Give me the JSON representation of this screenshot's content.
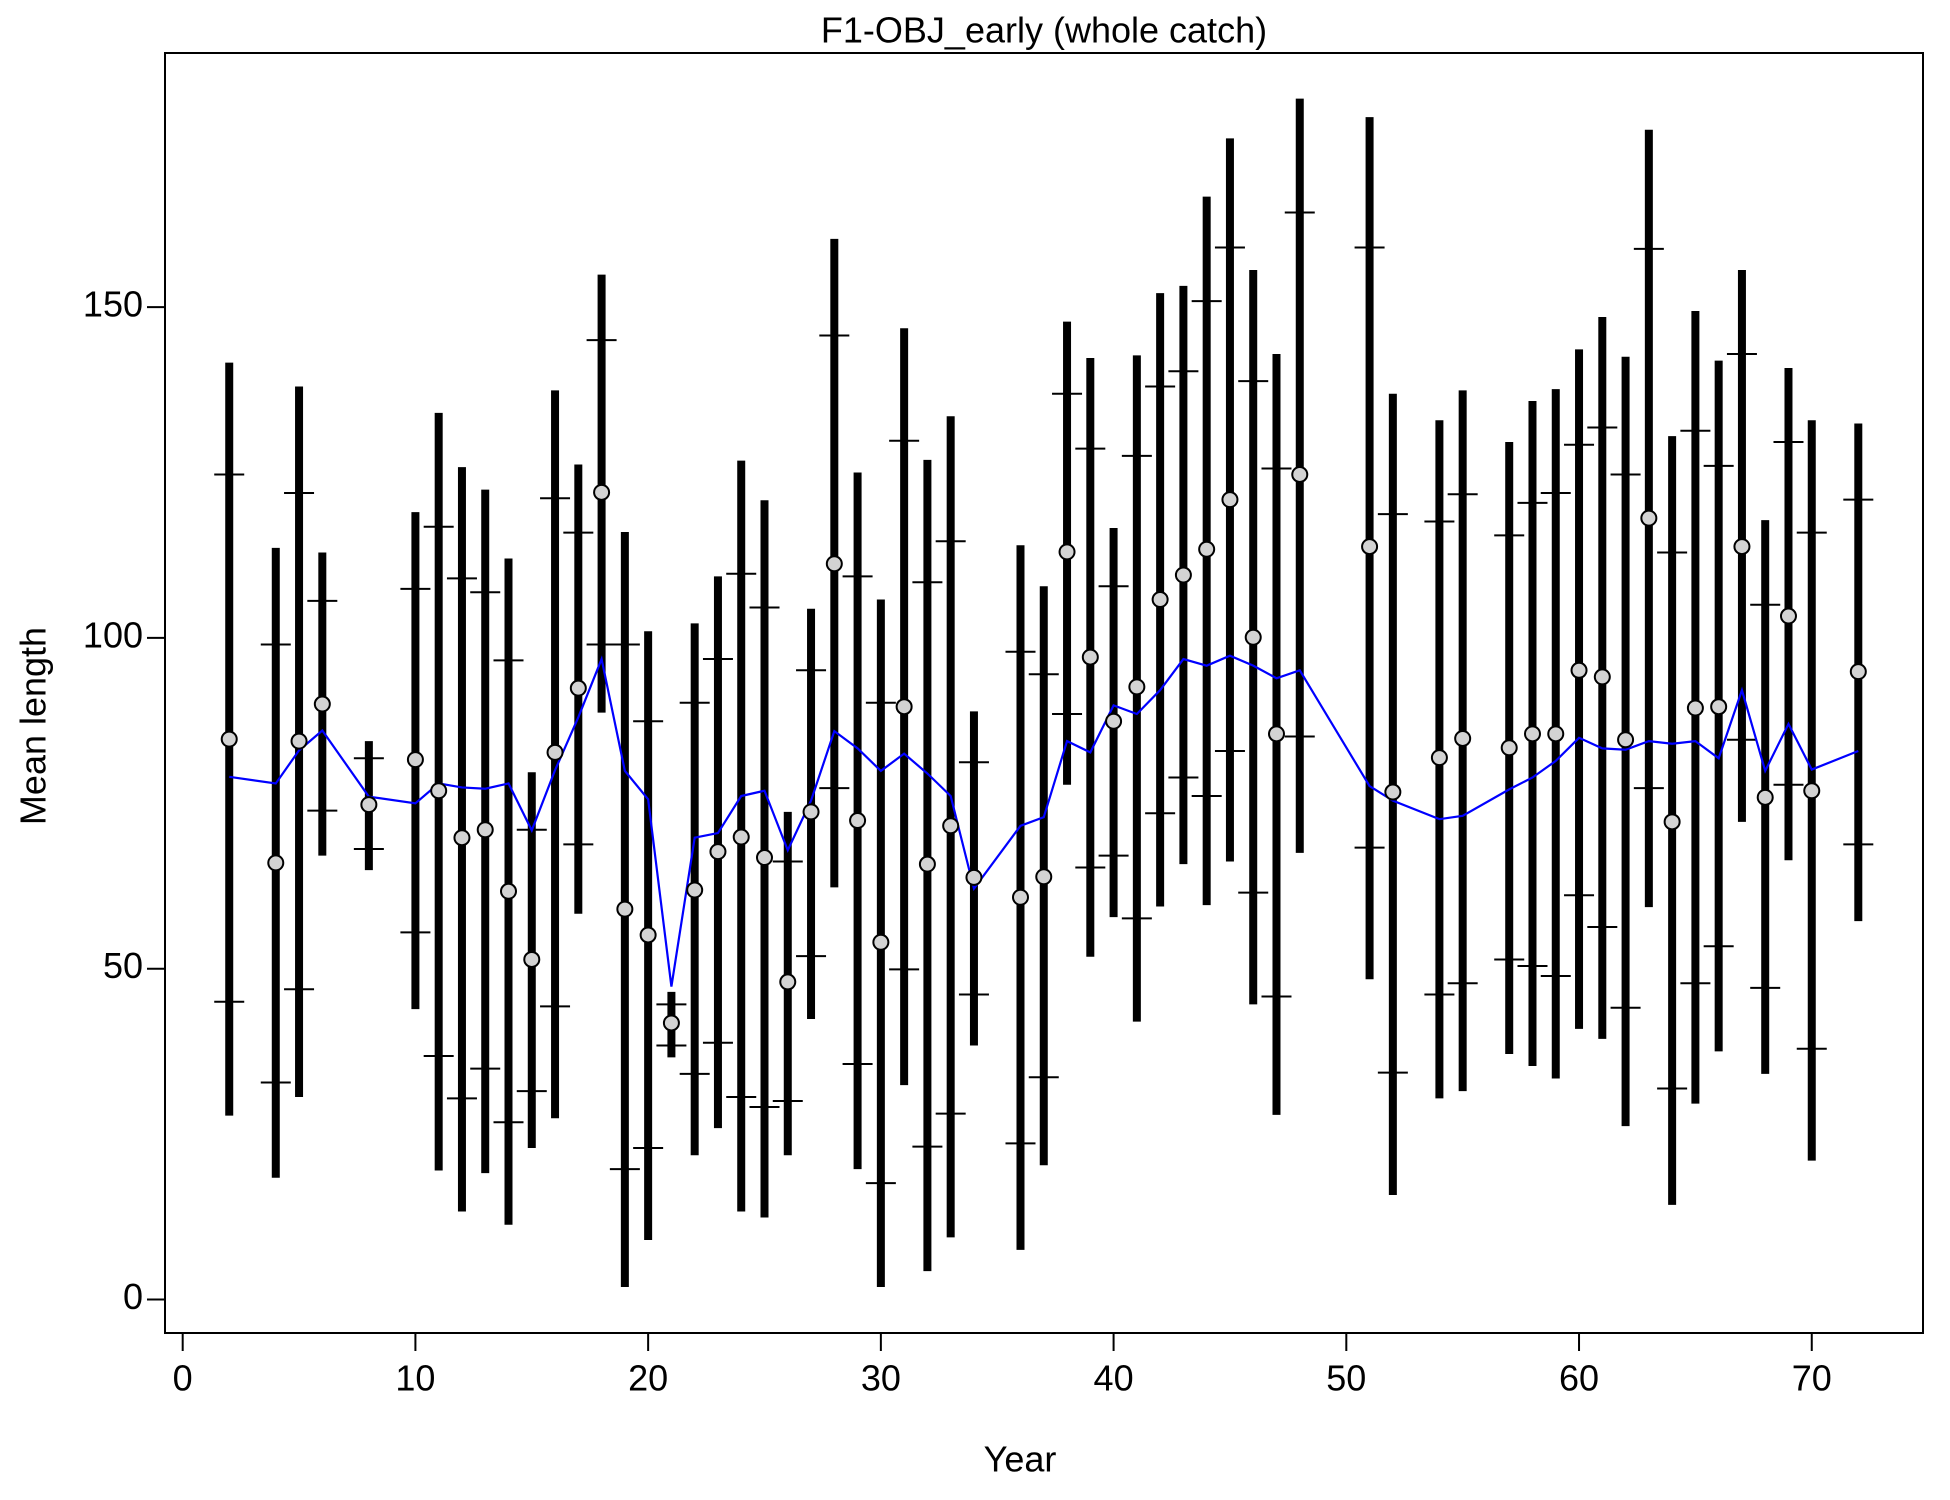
{
  "chart_data": {
    "type": "errorbar",
    "title": "F1-OBJ_early (whole catch)",
    "x_label": "Year",
    "y_label": "Mean length",
    "xlim": [
      -0.76,
      74.78
    ],
    "ylim": [
      -5.06,
      188.4
    ],
    "xticks": [
      0,
      10,
      20,
      30,
      40,
      50,
      60,
      70
    ],
    "yticks": [
      0,
      50,
      100,
      150
    ],
    "point_color": "#d3d3d3",
    "bar_color": "#000000",
    "line_color": "#0000ff",
    "x": [
      2,
      4,
      5,
      6,
      8,
      10,
      11,
      12,
      13,
      14,
      15,
      16,
      17,
      18,
      19,
      20,
      21,
      22,
      23,
      24,
      25,
      26,
      27,
      28,
      29,
      30,
      31,
      32,
      33,
      34,
      36,
      37,
      38,
      39,
      40,
      41,
      42,
      43,
      44,
      45,
      46,
      47,
      48,
      51,
      52,
      54,
      55,
      57,
      58,
      59,
      60,
      61,
      62,
      63,
      64,
      65,
      66,
      67,
      68,
      69,
      70,
      72
    ],
    "observed": [
      84.7,
      66,
      84.4,
      90,
      74.8,
      81.6,
      76.9,
      69.8,
      71,
      61.7,
      51.4,
      82.7,
      92.4,
      122,
      59,
      55.1,
      41.8,
      61.9,
      67.7,
      69.9,
      66.8,
      48,
      73.7,
      111.2,
      72.4,
      54,
      89.6,
      65.8,
      71.6,
      63.8,
      60.8,
      63.9,
      113,
      97.1,
      87.4,
      92.6,
      105.8,
      109.5,
      113.4,
      120.9,
      100.1,
      85.5,
      124.7,
      113.8,
      76.7,
      81.9,
      84.8,
      83.4,
      85.5,
      85.5,
      95.1,
      94.1,
      84.6,
      118.1,
      72.2,
      89.4,
      89.6,
      113.8,
      75.9,
      103.3,
      76.9,
      94.9
    ],
    "expected": [
      79,
      78,
      83,
      86,
      76,
      75,
      78,
      77.4,
      77.2,
      78,
      70.9,
      80,
      88,
      96.8,
      79.9,
      75.6,
      47.3,
      69.8,
      70.5,
      76.1,
      76.9,
      67.9,
      75.4,
      85.9,
      83.3,
      79.9,
      82.5,
      79.5,
      76.1,
      62.1,
      71.6,
      72.9,
      84.4,
      82.7,
      89.8,
      88.5,
      92.1,
      96.8,
      95.8,
      97.3,
      95.8,
      93.9,
      95.1,
      77.6,
      75.4,
      72.6,
      73.1,
      77.1,
      78.9,
      81.4,
      84.9,
      83.3,
      83.1,
      84.4,
      84,
      84.4,
      81.8,
      92.1,
      79.9,
      87,
      80.1,
      82.9
    ],
    "outer_lower": [
      27.8,
      18.4,
      30.6,
      67.1,
      64.9,
      43.9,
      19.5,
      13.3,
      19.1,
      11.3,
      22.9,
      27.4,
      58.3,
      88.7,
      1.9,
      9,
      36.6,
      21.8,
      25.9,
      13.3,
      12.4,
      21.8,
      42.4,
      62.3,
      19.7,
      1.9,
      32.4,
      4.3,
      9.4,
      38.4,
      7.5,
      20.3,
      77.8,
      51.8,
      57.8,
      42,
      59.4,
      65.8,
      59.6,
      66.2,
      44.6,
      27.9,
      67.5,
      48.4,
      15.8,
      30.4,
      31.5,
      37.1,
      35.3,
      33.4,
      40.9,
      39.4,
      26.2,
      59.3,
      14.3,
      29.6,
      37.5,
      72.2,
      34.1,
      66.4,
      21,
      57.2
    ],
    "outer_upper": [
      141.6,
      113.6,
      138,
      112.9,
      84.4,
      119,
      134,
      125.8,
      122.4,
      112,
      79.7,
      137.4,
      126.2,
      154.9,
      116,
      101,
      46.5,
      102.2,
      109.3,
      126.8,
      120.8,
      73.7,
      104.4,
      160.3,
      125,
      105.8,
      146.8,
      126.9,
      133.5,
      88.9,
      114,
      107.8,
      147.8,
      142.3,
      116.6,
      142.7,
      152.1,
      153.2,
      166.7,
      175.5,
      155.6,
      142.9,
      181.5,
      178.7,
      136.9,
      132.9,
      137.4,
      129.6,
      135.8,
      137.6,
      143.6,
      148.5,
      142.5,
      176.8,
      130.5,
      149.4,
      141.9,
      155.6,
      117.8,
      140.8,
      132.9,
      132.4
    ],
    "inner_lower": [
      45,
      32.8,
      46.9,
      73.9,
      68.1,
      55.5,
      36.8,
      30.4,
      34.9,
      26.8,
      31.5,
      44.3,
      68.8,
      99,
      19.7,
      22.9,
      38.4,
      34.1,
      38.8,
      30.6,
      29.1,
      30,
      51.9,
      77.3,
      35.6,
      17.6,
      49.9,
      23.1,
      28.1,
      46.1,
      23.6,
      33.6,
      88.5,
      65.3,
      67.1,
      57.6,
      73.5,
      78.9,
      76.1,
      82.9,
      61.5,
      45.8,
      85.1,
      68.3,
      34.3,
      46.1,
      47.8,
      51.4,
      50.4,
      48.9,
      61.1,
      56.3,
      44.1,
      77.3,
      31.9,
      47.8,
      53.4,
      84.6,
      47.1,
      77.8,
      37.9,
      68.8
    ],
    "inner_upper": [
      124.7,
      99,
      121.9,
      105.6,
      81.8,
      107.4,
      116.8,
      109,
      106.9,
      96.6,
      71,
      121.1,
      115.9,
      145,
      99,
      87.4,
      44.6,
      90.2,
      96.8,
      109.7,
      104.6,
      66.2,
      95.1,
      145.7,
      109.3,
      90.2,
      129.8,
      108.4,
      114.6,
      81.2,
      97.9,
      94.5,
      136.9,
      128.6,
      107.8,
      127.5,
      138,
      140.3,
      150.9,
      159,
      138.8,
      125.6,
      164.3,
      159,
      118.7,
      117.6,
      121.7,
      115.5,
      120.4,
      121.9,
      129.2,
      131.8,
      124.7,
      158.8,
      112.9,
      131.3,
      126,
      142.9,
      105,
      129.6,
      115.9,
      120.9
    ]
  }
}
